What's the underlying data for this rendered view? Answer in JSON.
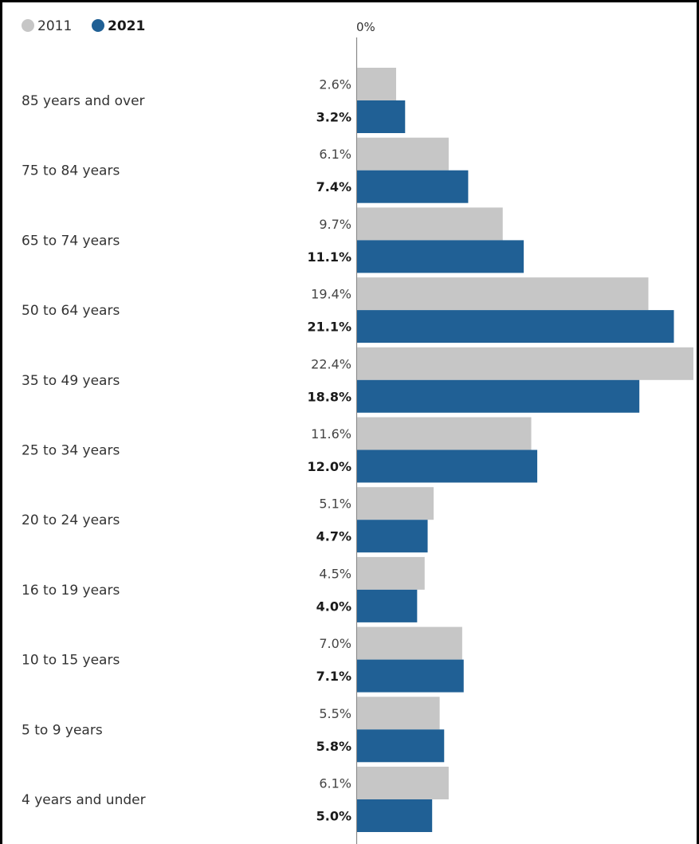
{
  "chart_data": {
    "type": "bar",
    "orientation": "horizontal",
    "legend_position": "top-left",
    "grid": false,
    "axis_tick_label": "0%",
    "xlim": [
      0,
      22.4
    ],
    "categories": [
      "85 years and over",
      "75 to 84 years",
      "65 to 74 years",
      "50 to 64 years",
      "35 to 49 years",
      "25 to 34 years",
      "20 to 24 years",
      "16 to 19 years",
      "10 to 15 years",
      "5 to 9 years",
      "4 years and under"
    ],
    "series": [
      {
        "name": "2011",
        "color": "#c6c6c6",
        "values": [
          2.6,
          6.1,
          9.7,
          19.4,
          22.4,
          11.6,
          5.1,
          4.5,
          7.0,
          5.5,
          6.1
        ],
        "labels": [
          "2.6%",
          "6.1%",
          "9.7%",
          "19.4%",
          "22.4%",
          "11.6%",
          "5.1%",
          "4.5%",
          "7.0%",
          "5.5%",
          "6.1%"
        ]
      },
      {
        "name": "2021",
        "color": "#206095",
        "values": [
          3.2,
          7.4,
          11.1,
          21.1,
          18.8,
          12.0,
          4.7,
          4.0,
          7.1,
          5.8,
          5.0
        ],
        "labels": [
          "3.2%",
          "7.4%",
          "11.1%",
          "21.1%",
          "18.8%",
          "12.0%",
          "4.7%",
          "4.0%",
          "7.1%",
          "5.8%",
          "5.0%"
        ]
      }
    ]
  }
}
